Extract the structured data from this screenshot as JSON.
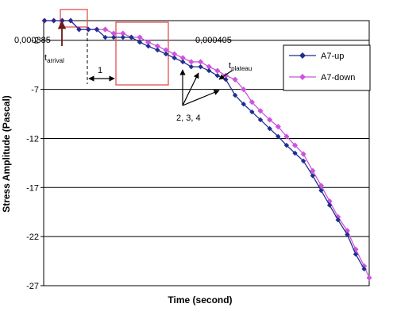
{
  "chart_data": {
    "type": "line",
    "title": "",
    "xlabel": "Time (second)",
    "ylabel": "Stress Amplitude (Pascal)",
    "x_tick_labels": [
      "0,000385",
      "0,000405"
    ],
    "x_tick_values": [
      0.000385,
      0.000405
    ],
    "yticks": [
      -2,
      -7,
      -12,
      -17,
      -22,
      -27
    ],
    "ylim": [
      -27,
      0
    ],
    "xlim": [
      0.0003789,
      0.0004175
    ],
    "grid": "horizontal",
    "legend_position": "right",
    "series": [
      {
        "name": "A7-up",
        "color": "#1f2f8f",
        "marker": "diamond",
        "x": [
          0.000379,
          0.0003801,
          0.0003811,
          0.0003821,
          0.0003831,
          0.0003842,
          0.0003852,
          0.0003862,
          0.0003872,
          0.0003883,
          0.0003893,
          0.0003903,
          0.0003913,
          0.0003924,
          0.0003934,
          0.0003944,
          0.0003954,
          0.0003964,
          0.0003975,
          0.0003985,
          0.0003995,
          0.0004005,
          0.0004016,
          0.0004026,
          0.0004036,
          0.0004046,
          0.0004057,
          0.0004067,
          0.0004077,
          0.0004087,
          0.0004097,
          0.0004108,
          0.0004118,
          0.0004128,
          0.0004138,
          0.0004149,
          0.0004159,
          0.0004169
        ],
        "values": [
          0.0,
          0.0,
          0.0,
          0.0,
          -0.9,
          -0.9,
          -0.9,
          -1.7,
          -1.7,
          -1.7,
          -1.7,
          -2.2,
          -2.6,
          -3.0,
          -3.4,
          -3.8,
          -4.2,
          -4.7,
          -4.7,
          -5.1,
          -5.6,
          -6.0,
          -7.6,
          -8.5,
          -9.3,
          -10.1,
          -11.0,
          -11.8,
          -12.7,
          -13.5,
          -14.3,
          -15.8,
          -17.3,
          -18.8,
          -20.3,
          -21.8,
          -23.8,
          -25.3
        ]
      },
      {
        "name": "A7-down",
        "color": "#cc55dd",
        "marker": "diamond",
        "x": [
          0.000379,
          0.0003801,
          0.0003811,
          0.0003821,
          0.0003831,
          0.0003842,
          0.0003852,
          0.0003862,
          0.0003872,
          0.0003883,
          0.0003893,
          0.0003903,
          0.0003913,
          0.0003924,
          0.0003934,
          0.0003944,
          0.0003954,
          0.0003964,
          0.0003975,
          0.0003985,
          0.0003995,
          0.0004005,
          0.0004016,
          0.0004026,
          0.0004036,
          0.0004046,
          0.0004057,
          0.0004067,
          0.0004077,
          0.0004087,
          0.0004097,
          0.0004108,
          0.0004118,
          0.0004128,
          0.0004138,
          0.0004149,
          0.0004159,
          0.0004169,
          0.0004175
        ],
        "values": [
          0.0,
          0.0,
          0.0,
          0.0,
          -0.9,
          -0.9,
          -0.9,
          -0.9,
          -1.3,
          -1.3,
          -1.7,
          -1.7,
          -2.2,
          -2.6,
          -3.0,
          -3.4,
          -3.8,
          -4.2,
          -4.2,
          -4.7,
          -5.1,
          -5.6,
          -6.0,
          -7.0,
          -8.3,
          -9.2,
          -10.1,
          -10.8,
          -11.8,
          -12.7,
          -13.6,
          -15.3,
          -16.8,
          -18.4,
          -20.0,
          -21.4,
          -23.3,
          -25.0,
          -26.2
        ]
      }
    ],
    "annotations": {
      "t_arrival": {
        "main": "t",
        "sub": "arrival"
      },
      "t_plateau": {
        "main": "t",
        "sub": "plateau"
      },
      "label_1": "1",
      "label_234": "2, 3, 4"
    }
  }
}
